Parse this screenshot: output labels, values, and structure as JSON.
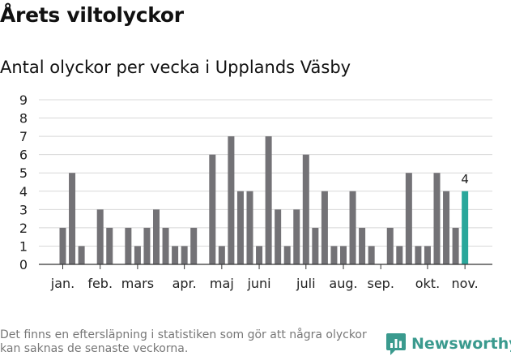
{
  "title": "Årets viltolyckor",
  "subtitle": "Antal olyckor per vecka i Upplands Väsby",
  "footnote": "Det finns en eftersläpning i statistiken som gör att några olyckor kan saknas de senaste veckorna.",
  "brand": {
    "name": "Newsworthy",
    "icon": "newsworthy-logo-icon"
  },
  "colors": {
    "bar": "#737276",
    "highlight": "#2aa79b",
    "grid": "#d8d8d8",
    "axis": "#333333"
  },
  "chart_data": {
    "type": "bar",
    "title": "Antal olyckor per vecka i Upplands Väsby",
    "xlabel": "",
    "ylabel": "",
    "ylim": [
      0,
      9
    ],
    "yticks": [
      0,
      1,
      2,
      3,
      4,
      5,
      6,
      7,
      8,
      9
    ],
    "grid": true,
    "legend": "none",
    "month_labels": [
      "jan.",
      "feb.",
      "mars",
      "apr.",
      "maj",
      "juni",
      "juli",
      "aug.",
      "sep.",
      "okt.",
      "nov."
    ],
    "month_start_week": [
      1,
      5,
      9,
      14,
      18,
      22,
      27,
      31,
      35,
      40,
      44
    ],
    "weeks": [
      1,
      2,
      3,
      4,
      5,
      6,
      7,
      8,
      9,
      10,
      11,
      12,
      13,
      14,
      15,
      16,
      17,
      18,
      19,
      20,
      21,
      22,
      23,
      24,
      25,
      26,
      27,
      28,
      29,
      30,
      31,
      32,
      33,
      34,
      35,
      36,
      37,
      38,
      39,
      40,
      41,
      42,
      43,
      44
    ],
    "values": [
      2,
      5,
      1,
      0,
      3,
      2,
      0,
      2,
      1,
      2,
      3,
      2,
      1,
      1,
      2,
      0,
      6,
      1,
      7,
      4,
      4,
      1,
      7,
      3,
      1,
      3,
      6,
      2,
      4,
      1,
      1,
      4,
      2,
      1,
      0,
      2,
      1,
      5,
      1,
      1,
      5,
      4,
      2,
      4
    ],
    "highlight_week": 44,
    "highlight_label": "4"
  }
}
